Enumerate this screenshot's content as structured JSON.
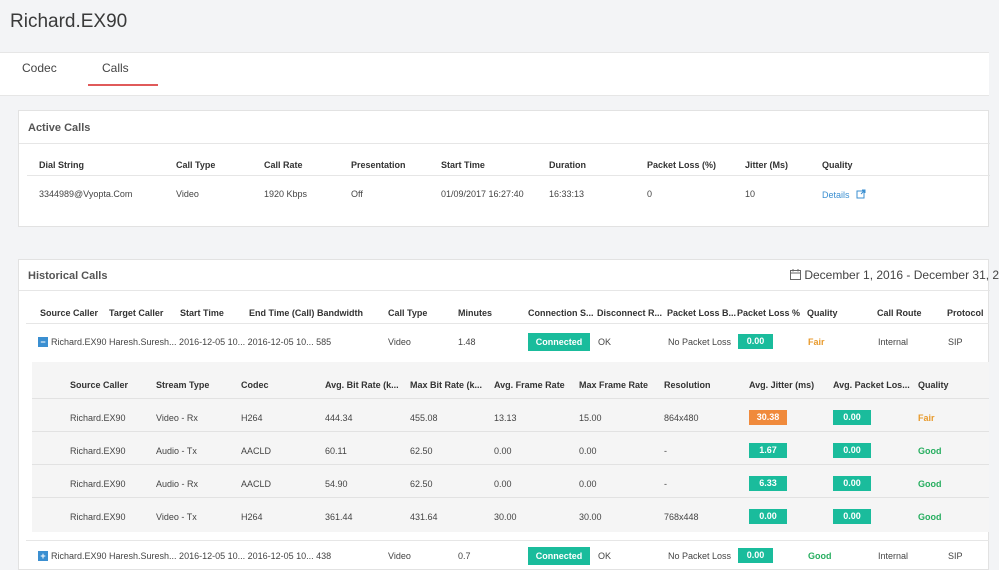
{
  "page": {
    "title": "Richard.EX90"
  },
  "tabs": [
    {
      "label": "Codec"
    },
    {
      "label": "Calls"
    }
  ],
  "active_calls": {
    "title": "Active Calls",
    "headers": [
      "Dial String",
      "Call Type",
      "Call Rate",
      "Presentation",
      "Start Time",
      "Duration",
      "Packet Loss (%)",
      "Jitter (Ms)",
      "Quality"
    ],
    "row": {
      "dial_string": "3344989@Vyopta.Com",
      "call_type": "Video",
      "call_rate": "1920 Kbps",
      "presentation": "Off",
      "start_time": "01/09/2017 16:27:40",
      "duration": "16:33:13",
      "packet_loss": "0",
      "jitter": "10",
      "quality_link": "Details"
    }
  },
  "historical_calls": {
    "title": "Historical Calls",
    "date_range": "December 1, 2016 - December 31, 2",
    "headers": [
      "Source Caller",
      "Target Caller",
      "Start Time",
      "End Time (Call)",
      "Bandwidth",
      "Call Type",
      "Minutes",
      "Connection S...",
      "Disconnect R...",
      "Packet Loss B...",
      "Packet Loss %",
      "Quality",
      "Call Route",
      "Protocol"
    ],
    "rows": [
      {
        "expand": "−",
        "text": "Richard.EX90 Haresh.Suresh... 2016-12-05 10... 2016-12-05 10... 585",
        "call_type": "Video",
        "minutes": "1.48",
        "connection": "Connected",
        "disconnect": "OK",
        "packet_loss_b": "No Packet Loss",
        "packet_loss_pct": "0.00",
        "quality": "Fair",
        "route": "Internal",
        "protocol": "SIP"
      },
      {
        "expand": "+",
        "text": "Richard.EX90 Haresh.Suresh... 2016-12-05 10... 2016-12-05 10... 438",
        "call_type": "Video",
        "minutes": "0.7",
        "connection": "Connected",
        "disconnect": "OK",
        "packet_loss_b": "No Packet Loss",
        "packet_loss_pct": "0.00",
        "quality": "Good",
        "route": "Internal",
        "protocol": "SIP"
      }
    ],
    "streams": {
      "headers": [
        "Source Caller",
        "Stream Type",
        "Codec",
        "Avg. Bit Rate (k...",
        "Max Bit Rate (k...",
        "Avg. Frame Rate",
        "Max Frame Rate",
        "Resolution",
        "Avg. Jitter (ms)",
        "Avg. Packet Los...",
        "Quality"
      ],
      "rows": [
        {
          "source": "Richard.EX90",
          "stream": "Video - Rx",
          "codec": "H264",
          "avg_bit": "444.34",
          "max_bit": "455.08",
          "avg_fr": "13.13",
          "max_fr": "15.00",
          "res": "864x480",
          "jitter": "30.38",
          "loss": "0.00",
          "quality": "Fair"
        },
        {
          "source": "Richard.EX90",
          "stream": "Audio - Tx",
          "codec": "AACLD",
          "avg_bit": "60.11",
          "max_bit": "62.50",
          "avg_fr": "0.00",
          "max_fr": "0.00",
          "res": "-",
          "jitter": "1.67",
          "loss": "0.00",
          "quality": "Good"
        },
        {
          "source": "Richard.EX90",
          "stream": "Audio - Rx",
          "codec": "AACLD",
          "avg_bit": "54.90",
          "max_bit": "62.50",
          "avg_fr": "0.00",
          "max_fr": "0.00",
          "res": "-",
          "jitter": "6.33",
          "loss": "0.00",
          "quality": "Good"
        },
        {
          "source": "Richard.EX90",
          "stream": "Video - Tx",
          "codec": "H264",
          "avg_bit": "361.44",
          "max_bit": "431.64",
          "avg_fr": "30.00",
          "max_fr": "30.00",
          "res": "768x448",
          "jitter": "0.00",
          "loss": "0.00",
          "quality": "Good"
        }
      ]
    }
  },
  "colors": {
    "accent_tab": "#e05a5a",
    "badge_green": "#1abc9c",
    "badge_orange": "#f08a3c",
    "quality_fair": "#e89a2c",
    "quality_good": "#27ae60",
    "link": "#3b8fd1"
  }
}
